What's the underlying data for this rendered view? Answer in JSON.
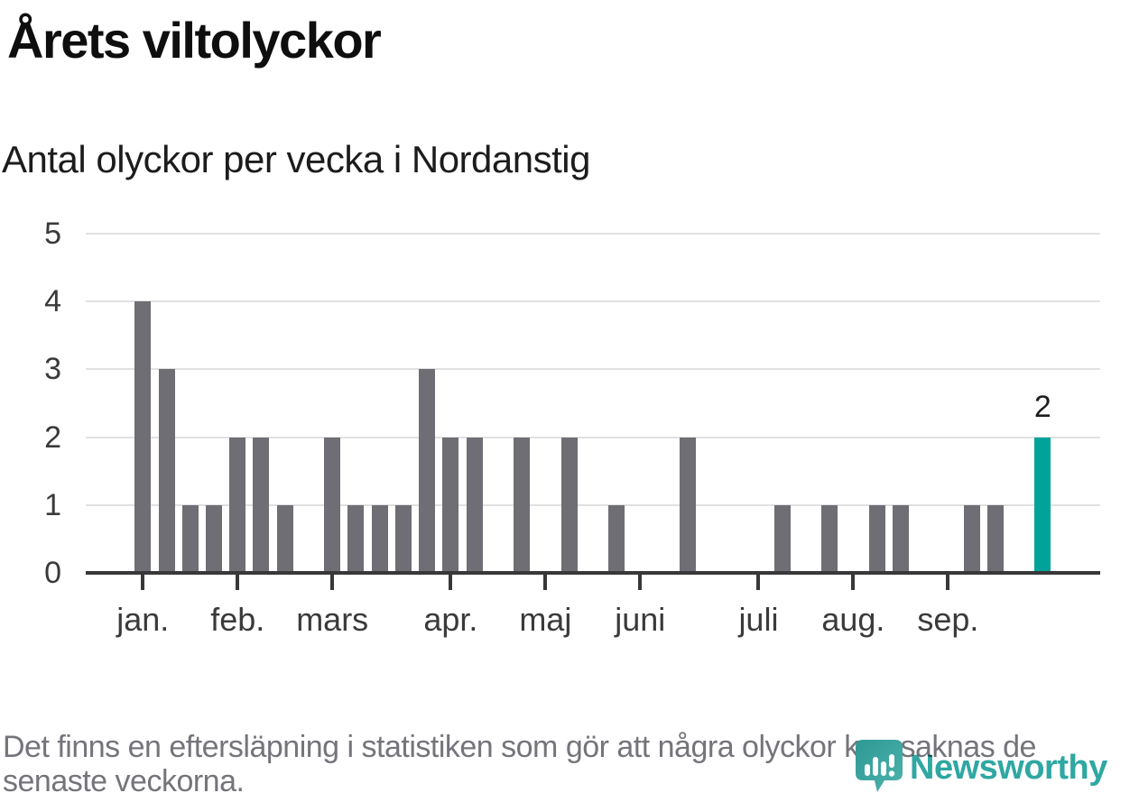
{
  "header": {
    "title": "Årets viltolyckor",
    "subtitle": "Antal olyckor per vecka i Nordanstig"
  },
  "chart_data": {
    "type": "bar",
    "title": "Årets viltolyckor",
    "subtitle": "Antal olyckor per vecka i Nordanstig",
    "x_unit": "vecka (week)",
    "values": [
      4,
      3,
      1,
      1,
      2,
      2,
      1,
      0,
      2,
      1,
      1,
      1,
      3,
      2,
      2,
      0,
      2,
      0,
      2,
      0,
      1,
      0,
      0,
      2,
      0,
      0,
      0,
      1,
      0,
      1,
      0,
      1,
      1,
      0,
      0,
      1,
      1,
      0,
      2
    ],
    "month_ticks": [
      {
        "label": "jan.",
        "index": 0
      },
      {
        "label": "feb.",
        "index": 4
      },
      {
        "label": "mars",
        "index": 8
      },
      {
        "label": "apr.",
        "index": 13
      },
      {
        "label": "maj",
        "index": 17
      },
      {
        "label": "juni",
        "index": 21
      },
      {
        "label": "juli",
        "index": 26
      },
      {
        "label": "aug.",
        "index": 30
      },
      {
        "label": "sep.",
        "index": 34
      }
    ],
    "yticks": [
      0,
      1,
      2,
      3,
      4,
      5
    ],
    "ylim": [
      0,
      5
    ],
    "grid": true,
    "legend": "none",
    "highlight_index": 38,
    "highlight_label": "2",
    "colors": {
      "bar": "#6e6e74",
      "highlight": "#00a29a"
    }
  },
  "footnote": {
    "lines": [
      "Det finns en eftersläpning i statistiken som gör att några olyckor kan saknas de",
      "senaste veckorna."
    ]
  },
  "logo": {
    "name": "Newsworthy",
    "icon": "newsworthy-badge-icon",
    "color": "#2fa7a2"
  }
}
